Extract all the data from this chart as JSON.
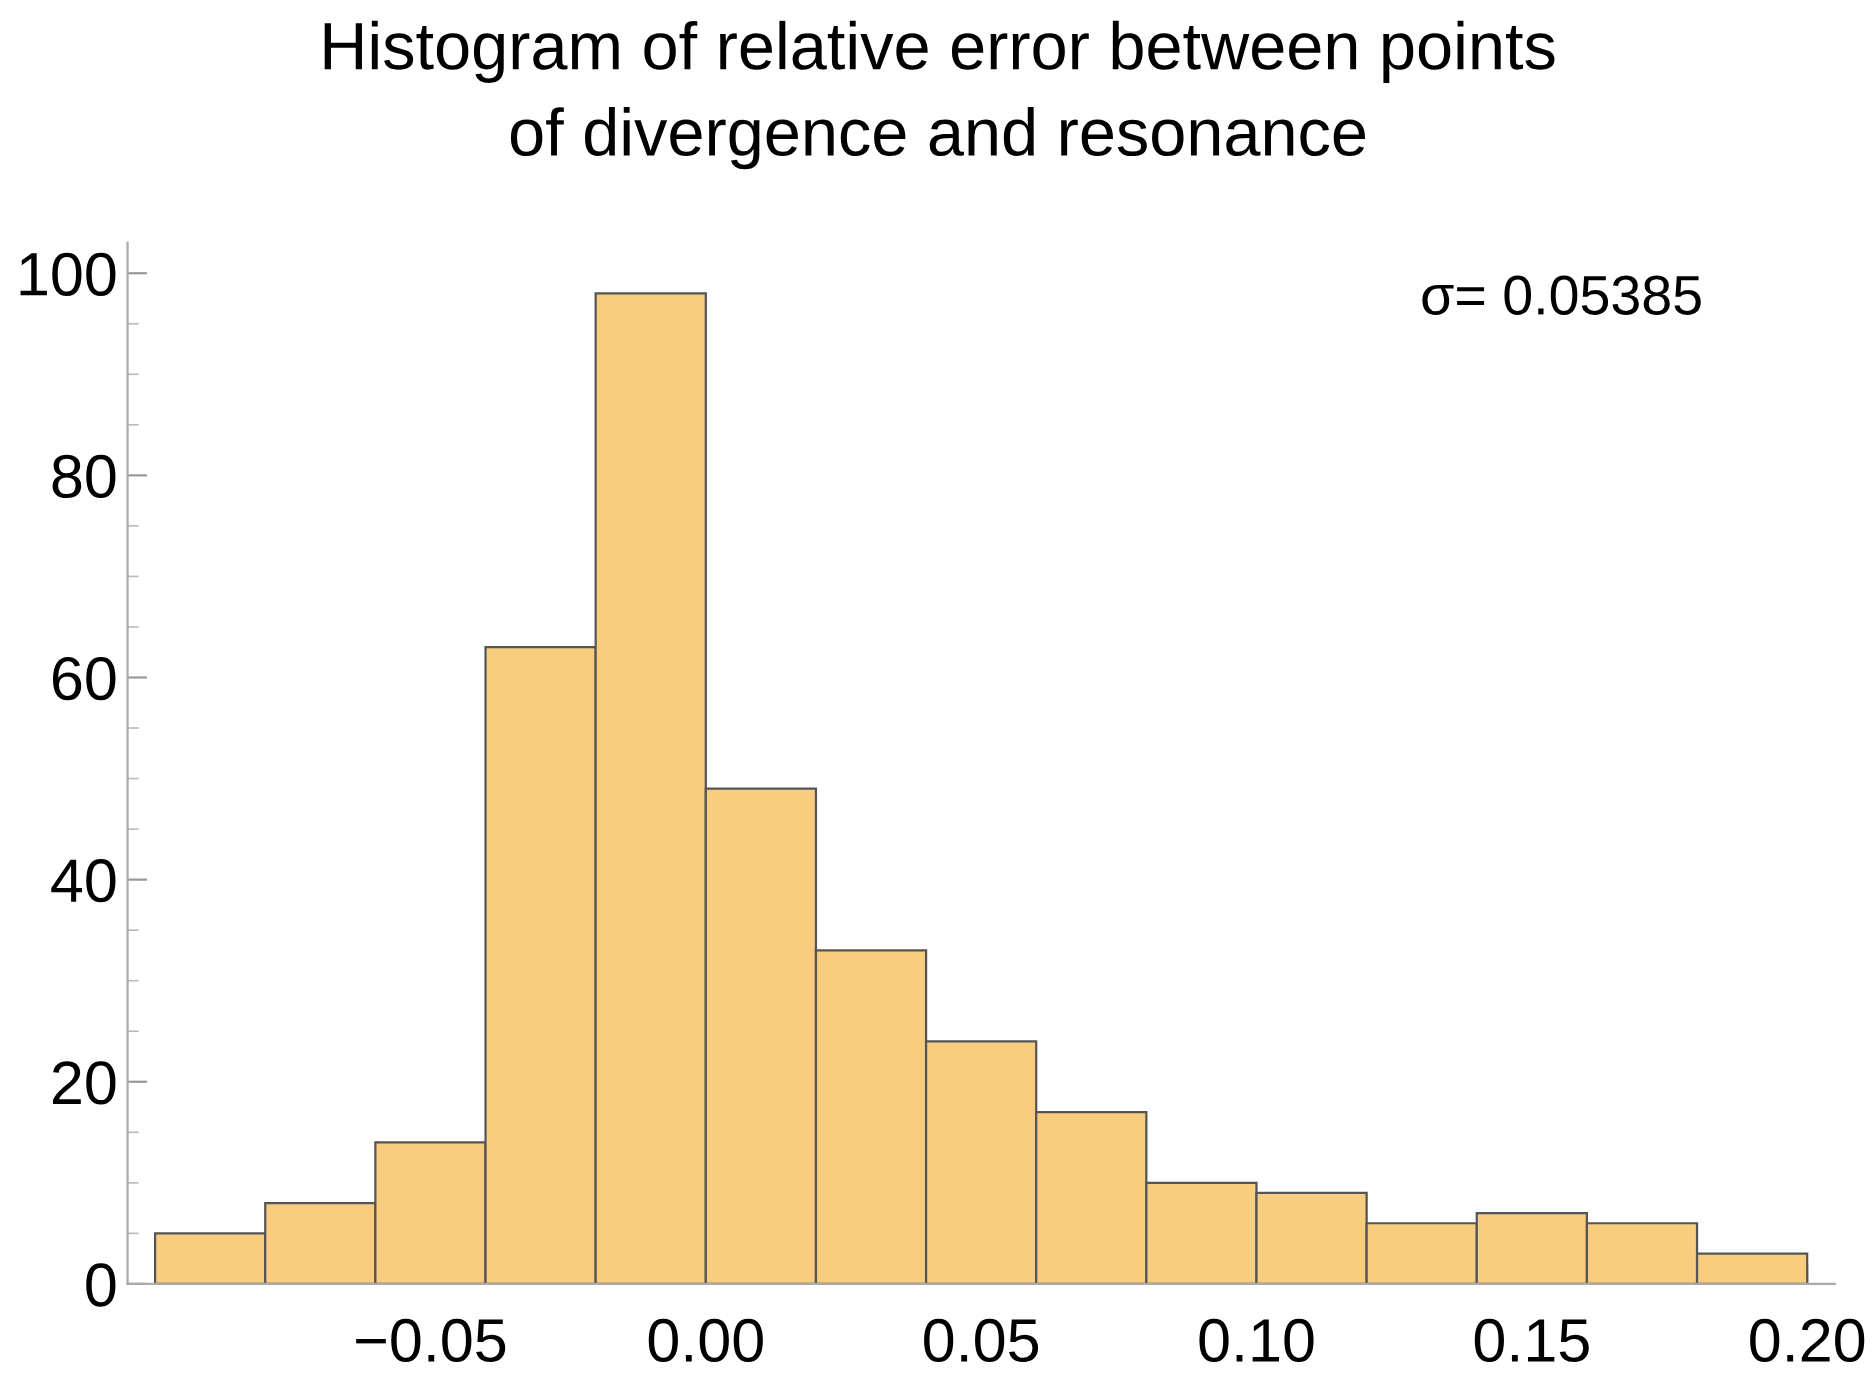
{
  "chart_data": {
    "type": "histogram",
    "title": "Histogram of relative error between points\nof divergence and resonance",
    "bins": [
      -0.1,
      -0.08,
      -0.06,
      -0.04,
      -0.02,
      0.0,
      0.02,
      0.04,
      0.06,
      0.08,
      0.1,
      0.12,
      0.14,
      0.16,
      0.18,
      0.2
    ],
    "values": [
      5,
      8,
      14,
      63,
      98,
      49,
      33,
      24,
      17,
      10,
      9,
      6,
      7,
      6,
      3
    ],
    "color": "#f9cd80",
    "xlim": [
      -0.105,
      0.205
    ],
    "ylim": [
      0,
      103
    ],
    "xticks": [
      {
        "value": -0.05,
        "label": "−0.05"
      },
      {
        "value": 0.0,
        "label": "0.00"
      },
      {
        "value": 0.05,
        "label": "0.05"
      },
      {
        "value": 0.1,
        "label": "0.10"
      },
      {
        "value": 0.15,
        "label": "0.15"
      },
      {
        "value": 0.2,
        "label": "0.20"
      }
    ],
    "yticks": [
      0,
      20,
      40,
      60,
      80,
      100
    ],
    "annotations": [
      "σ= 0.05385"
    ],
    "grid": false
  }
}
